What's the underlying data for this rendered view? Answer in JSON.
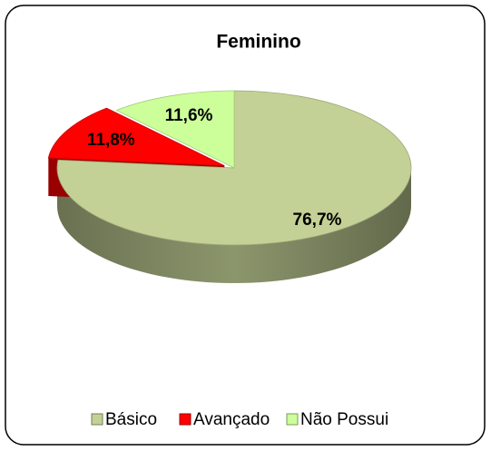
{
  "chart_data": {
    "type": "pie",
    "title": "Feminino",
    "categories": [
      "Básico",
      "Avançado",
      "Não Possui"
    ],
    "values": [
      76.7,
      11.8,
      11.6
    ],
    "value_labels": [
      "76,7%",
      "11,8%",
      "11,6%"
    ],
    "colors": [
      "#c3d196",
      "#ff0000",
      "#ccff99"
    ],
    "legend": "bottom"
  }
}
